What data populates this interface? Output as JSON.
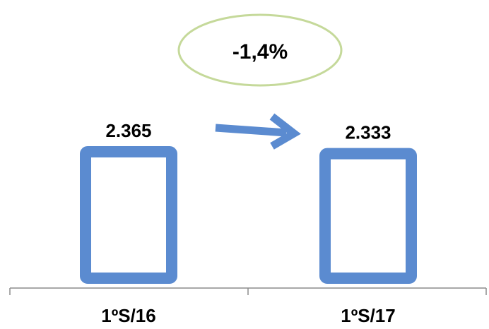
{
  "chart_data": {
    "type": "bar",
    "categories": [
      "1ºS/16",
      "1ºS/17"
    ],
    "values": [
      2365,
      2333
    ],
    "data_labels": [
      "2.365",
      "2.333"
    ],
    "annotation": "-1,4%",
    "grid": false,
    "legend": "none"
  },
  "colors": {
    "bar_outline": "#5B8BD0",
    "bar_fill": "#FFFFFF",
    "arrow": "#5B8BD0",
    "ellipse_outline": "#C5D99A",
    "axis": "#8C8C8C"
  }
}
